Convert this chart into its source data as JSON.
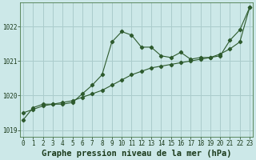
{
  "title": "Graphe pression niveau de la mer (hPa)",
  "bg_color": "#cce8e8",
  "grid_color": "#aacccc",
  "line_color": "#2d5a2d",
  "x": [
    0,
    1,
    2,
    3,
    4,
    5,
    6,
    7,
    8,
    9,
    10,
    11,
    12,
    13,
    14,
    15,
    16,
    17,
    18,
    19,
    20,
    21,
    22,
    23
  ],
  "line1": [
    1019.3,
    1019.65,
    1019.75,
    1019.75,
    1019.75,
    1019.8,
    1020.05,
    1020.3,
    1020.6,
    1021.55,
    1021.85,
    1021.75,
    1021.4,
    1021.4,
    1021.15,
    1021.1,
    1021.25,
    1021.05,
    1021.1,
    1021.1,
    1021.15,
    1021.6,
    1021.9,
    1022.55
  ],
  "line2": [
    1019.5,
    1019.6,
    1019.7,
    1019.75,
    1019.8,
    1019.85,
    1019.95,
    1020.05,
    1020.15,
    1020.3,
    1020.45,
    1020.6,
    1020.7,
    1020.8,
    1020.85,
    1020.9,
    1020.95,
    1021.0,
    1021.05,
    1021.1,
    1021.2,
    1021.35,
    1021.55,
    1022.55
  ],
  "ylim": [
    1018.8,
    1022.7
  ],
  "yticks": [
    1019,
    1020,
    1021,
    1022
  ],
  "xticks": [
    0,
    1,
    2,
    3,
    4,
    5,
    6,
    7,
    8,
    9,
    10,
    11,
    12,
    13,
    14,
    15,
    16,
    17,
    18,
    19,
    20,
    21,
    22,
    23
  ],
  "title_fontsize": 7.5,
  "tick_fontsize": 5.5
}
